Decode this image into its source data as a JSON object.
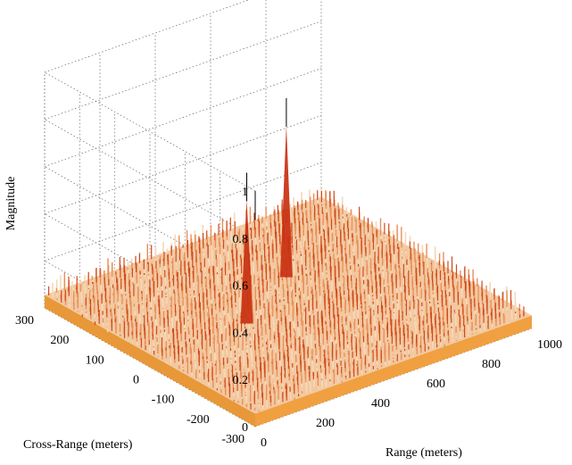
{
  "chart_data": {
    "type": "surface3d",
    "title": "",
    "xlabel": "Range (meters)",
    "ylabel": "Cross-Range (meters)",
    "zlabel": "Magnitude",
    "xlim": [
      0,
      1000
    ],
    "ylim": [
      -300,
      300
    ],
    "zlim": [
      0,
      1
    ],
    "x_ticks": [
      "0",
      "200",
      "400",
      "600",
      "800",
      "1000"
    ],
    "y_ticks": [
      "-300",
      "-200",
      "-100",
      "0",
      "100",
      "200",
      "300"
    ],
    "z_ticks": [
      "0",
      "0.2",
      "0.4",
      "0.6",
      "0.8",
      "1"
    ],
    "grid": true,
    "noise_floor": 0.1,
    "peaks": [
      {
        "range": 350,
        "cross_range": 0,
        "magnitude": 0.68
      },
      {
        "range": 620,
        "cross_range": 100,
        "magnitude": 0.8
      }
    ],
    "colors": {
      "low": "#f0a040",
      "mid": "#f2c8a0",
      "high": "#c83010"
    }
  }
}
